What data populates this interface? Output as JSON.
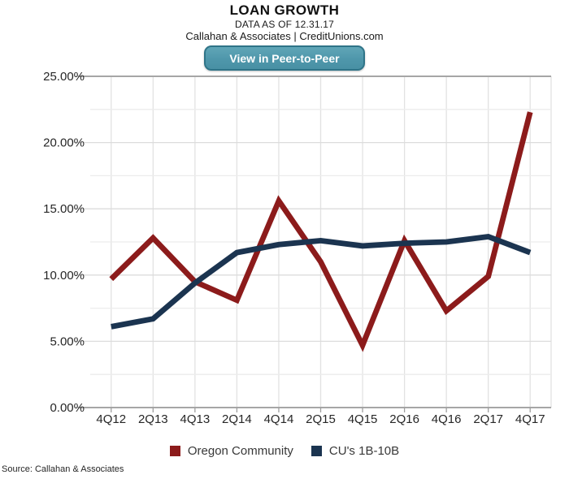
{
  "header": {
    "title": "LOAN GROWTH",
    "subtitle": "DATA AS OF 12.31.17",
    "byline": "Callahan & Associates | CreditUnions.com",
    "button_label": "View in Peer-to-Peer"
  },
  "footer": {
    "source": "Source: Callahan & Associates"
  },
  "colors": {
    "series_red": "#8c1b1b",
    "series_navy": "#1b3450",
    "button_teal": "#4f97ab",
    "button_border": "#2f7488",
    "grid_minor": "#ececec",
    "grid_major": "#dcdcdc",
    "grid_vertical": "#e2e2e2",
    "axis_border": "#a6a6a6",
    "tick": "#9e9e9e",
    "axis_label": "#262626"
  },
  "chart_data": {
    "type": "line",
    "title": "LOAN GROWTH",
    "categories": [
      "4Q12",
      "2Q13",
      "4Q13",
      "2Q14",
      "4Q14",
      "2Q15",
      "4Q15",
      "2Q16",
      "4Q16",
      "2Q17",
      "4Q17"
    ],
    "series": [
      {
        "name": "Oregon Community",
        "color": "#8c1b1b",
        "values": [
          9.7,
          12.8,
          9.5,
          8.1,
          15.6,
          11.0,
          4.7,
          12.6,
          7.3,
          9.9,
          22.3
        ]
      },
      {
        "name": "CU's 1B-10B",
        "color": "#1b3450",
        "values": [
          6.1,
          6.7,
          9.4,
          11.7,
          12.3,
          12.6,
          12.2,
          12.4,
          12.5,
          12.9,
          11.7
        ]
      }
    ],
    "xlabel": "",
    "ylabel": "",
    "ylim": [
      0,
      25
    ],
    "ytick_step": 5,
    "ytick_minor_step": 2.5,
    "ytick_format": "0.00%",
    "grid": true,
    "legend_position": "bottom"
  }
}
